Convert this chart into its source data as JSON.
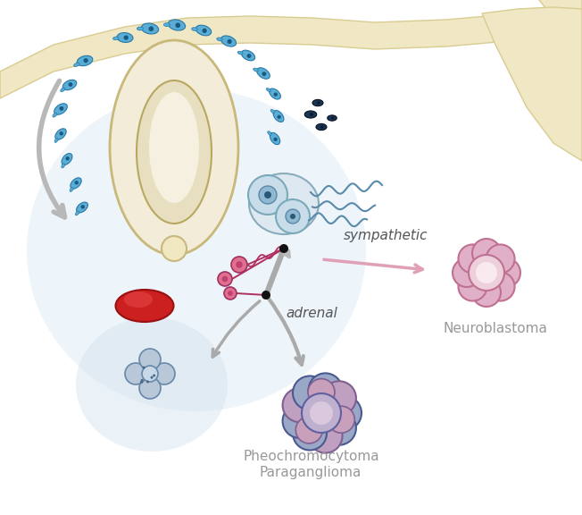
{
  "bg_color": "#ffffff",
  "fig_width": 6.52,
  "fig_height": 5.76,
  "dpi": 100,
  "label_neuroblastoma": "Neuroblastoma",
  "label_pheo1": "Pheochromocytoma",
  "label_pheo2": "Paraganglioma",
  "label_sympathetic": "sympathetic",
  "label_adrenal": "adrenal",
  "text_color": "#999999",
  "sympathetic_text_color": "#555555"
}
